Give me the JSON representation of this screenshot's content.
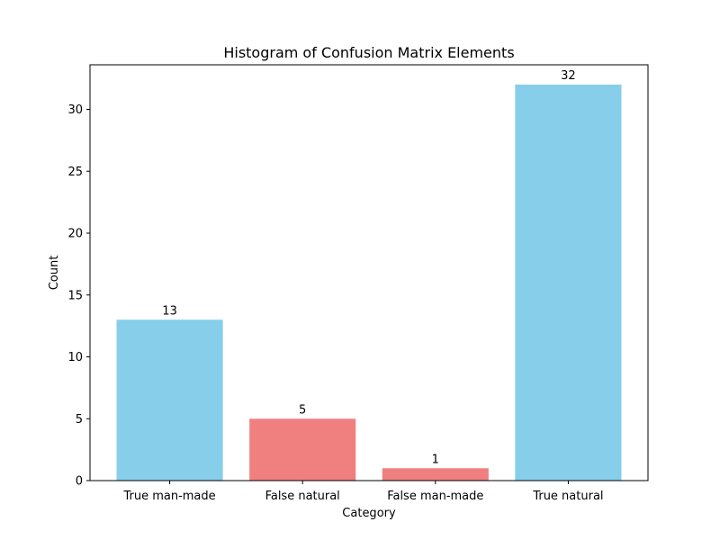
{
  "chart_data": {
    "type": "bar",
    "title": "Histogram of Confusion Matrix Elements",
    "xlabel": "Category",
    "ylabel": "Count",
    "categories": [
      "True man-made",
      "False natural",
      "False man-made",
      "True natural"
    ],
    "values": [
      13,
      5,
      1,
      32
    ],
    "bar_colors": [
      "#87ceeb",
      "#f08080",
      "#f08080",
      "#87ceeb"
    ],
    "data_labels": [
      "13",
      "5",
      "1",
      "32"
    ],
    "ylim": [
      0,
      33.6
    ],
    "y_ticks": [
      0,
      5,
      10,
      15,
      20,
      25,
      30
    ],
    "y_tick_labels": [
      "0",
      "5",
      "10",
      "15",
      "20",
      "25",
      "30"
    ],
    "grid": false,
    "legend": "none"
  }
}
